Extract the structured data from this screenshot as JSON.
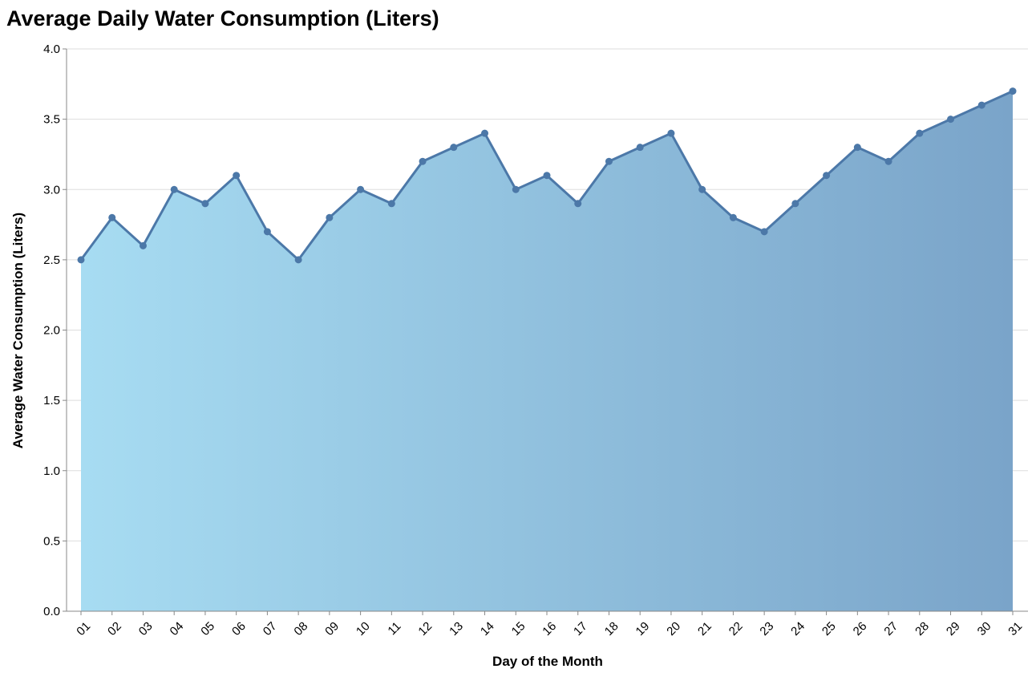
{
  "chart_data": {
    "type": "area",
    "title": "Average Daily Water Consumption (Liters)",
    "xlabel": "Day of the Month",
    "ylabel": "Average Water Consumption (Liters)",
    "ylim": [
      0,
      4.0
    ],
    "yticks": [
      "0.0",
      "0.5",
      "1.0",
      "1.5",
      "2.0",
      "2.5",
      "3.0",
      "3.5",
      "4.0"
    ],
    "grid": true,
    "categories": [
      "01",
      "02",
      "03",
      "04",
      "05",
      "06",
      "07",
      "08",
      "09",
      "10",
      "11",
      "12",
      "13",
      "14",
      "15",
      "16",
      "17",
      "18",
      "19",
      "20",
      "21",
      "22",
      "23",
      "24",
      "25",
      "26",
      "27",
      "28",
      "29",
      "30",
      "31"
    ],
    "values": [
      2.5,
      2.8,
      2.6,
      3.0,
      2.9,
      3.1,
      2.7,
      2.5,
      2.8,
      3.0,
      2.9,
      3.2,
      3.3,
      3.4,
      3.0,
      3.1,
      2.9,
      3.2,
      3.3,
      3.4,
      3.0,
      2.8,
      2.7,
      2.9,
      3.1,
      3.3,
      3.2,
      3.4,
      3.5,
      3.6,
      3.7
    ],
    "colors": {
      "line": "#4c78a8",
      "point": "#4c78a8",
      "gradient_start": "#a7dcf2",
      "gradient_end": "#7aa4c9",
      "grid": "#dddddd",
      "axis": "#888888"
    }
  }
}
